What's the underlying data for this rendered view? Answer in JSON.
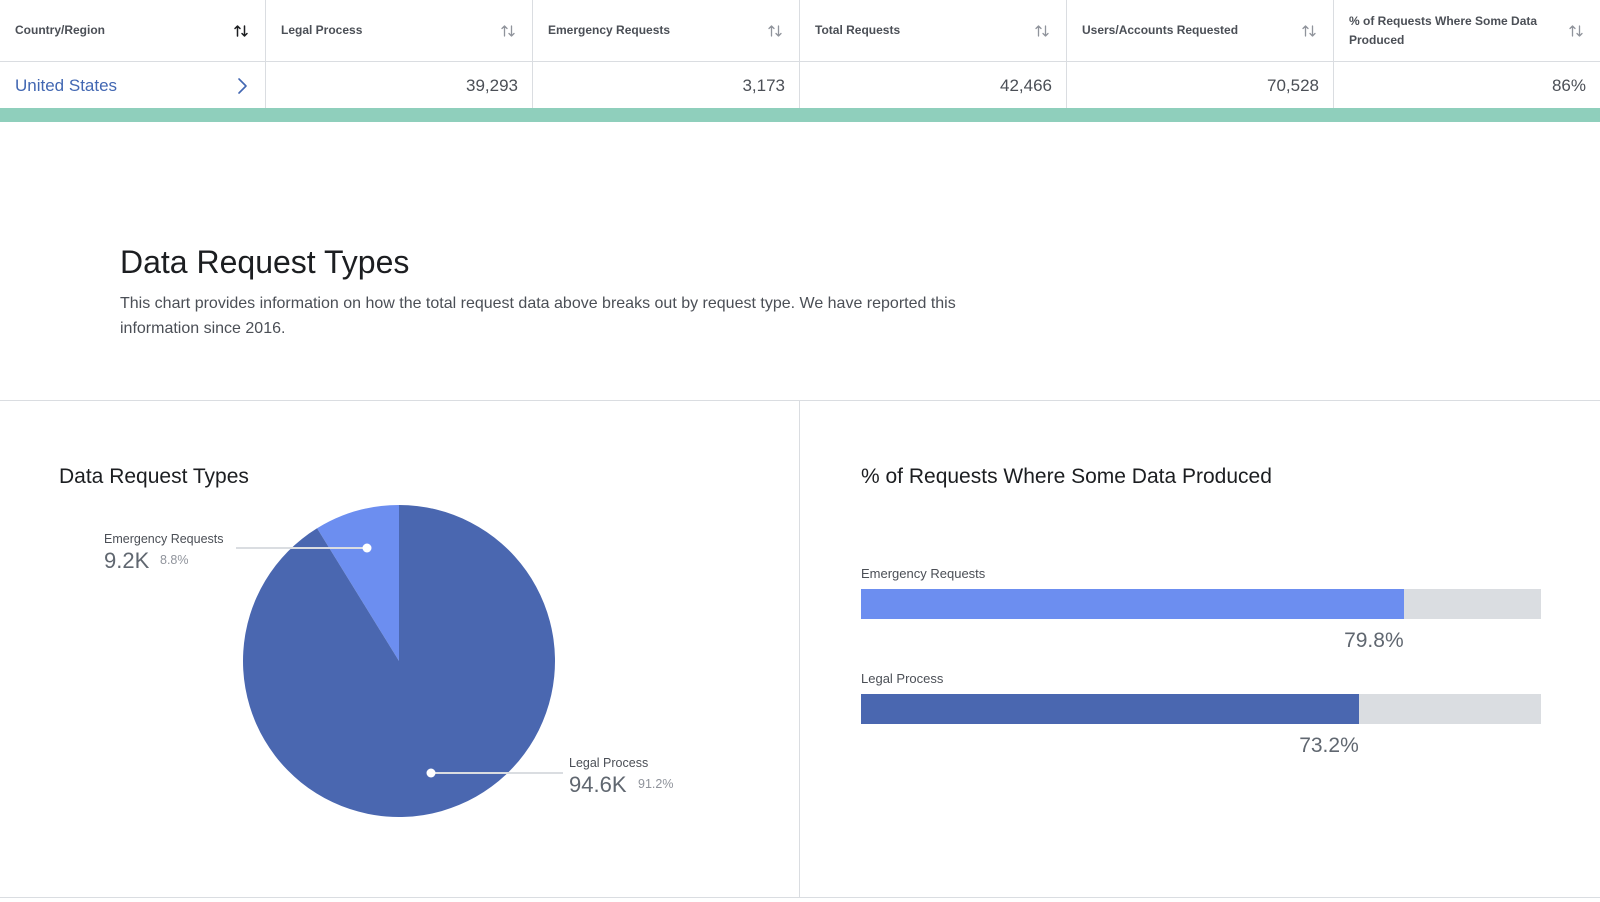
{
  "table": {
    "headers": [
      "Country/Region",
      "Legal Process",
      "Emergency Requests",
      "Total Requests",
      "Users/Accounts Requested",
      "% of Requests Where Some Data Produced"
    ],
    "rows": [
      [
        "United States",
        "39,293",
        "3,173",
        "42,466",
        "70,528",
        "86%"
      ]
    ]
  },
  "section": {
    "title": "Data Request Types",
    "description": "This chart provides information on how the total request data above breaks out by request type. We have reported this information since 2016."
  },
  "pie_panel": {
    "title": "Data Request Types"
  },
  "bar_panel": {
    "title": "% of Requests Where Some Data Produced"
  },
  "colors": {
    "legal_process": "#4a67b0",
    "emergency_requests": "#6c8ef0",
    "track": "#dadde1",
    "accent_bar": "#8fcfbc",
    "link": "#4267b2"
  },
  "chart_data": [
    {
      "type": "pie",
      "title": "Data Request Types",
      "slices": [
        {
          "name": "Emergency Requests",
          "value_label": "9.2K",
          "percent": 8.8,
          "percent_label": "8.8%"
        },
        {
          "name": "Legal Process",
          "value_label": "94.6K",
          "percent": 91.2,
          "percent_label": "91.2%"
        }
      ]
    },
    {
      "type": "bar",
      "orientation": "horizontal",
      "title": "% of Requests Where Some Data Produced",
      "categories": [
        "Emergency Requests",
        "Legal Process"
      ],
      "values": [
        79.8,
        73.2
      ],
      "value_labels": [
        "79.8%",
        "73.2%"
      ],
      "xlim": [
        0,
        100
      ]
    }
  ]
}
